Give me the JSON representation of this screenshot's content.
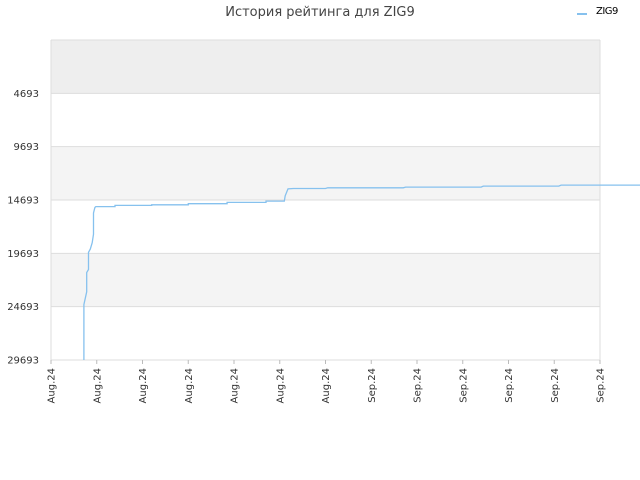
{
  "chart_data": {
    "type": "line",
    "title": "История рейтинга для ZIG9",
    "xlabel": "",
    "ylabel": "",
    "y_axis_inverted": true,
    "ylim": [
      29693,
      -306
    ],
    "yticks": [
      4693,
      9693,
      14693,
      19693,
      24693,
      29693
    ],
    "xticks": [
      "Aug.24",
      "Aug.24",
      "Aug.24",
      "Aug.24",
      "Aug.24",
      "Aug.24",
      "Aug.24",
      "Sep.24",
      "Sep.24",
      "Sep.24",
      "Sep.24",
      "Sep.24",
      "Sep.24"
    ],
    "grid": true,
    "band_colors": [
      "#eeeeee",
      "#ffffff",
      "#f4f4f4",
      "#ffffff",
      "#f4f4f4"
    ],
    "legend_position": "top-right",
    "series": [
      {
        "name": "ZIG9",
        "color": "#86c1ee",
        "points": [
          [
            0.72,
            29693
          ],
          [
            0.72,
            24500
          ],
          [
            0.78,
            23300
          ],
          [
            0.78,
            21500
          ],
          [
            0.82,
            21200
          ],
          [
            0.82,
            19600
          ],
          [
            0.86,
            19300
          ],
          [
            0.9,
            18700
          ],
          [
            0.93,
            17900
          ],
          [
            0.93,
            15900
          ],
          [
            0.96,
            15400
          ],
          [
            0.98,
            15310
          ],
          [
            1.4,
            15310
          ],
          [
            1.4,
            15200
          ],
          [
            2.2,
            15200
          ],
          [
            2.2,
            15140
          ],
          [
            3.0,
            15140
          ],
          [
            3.0,
            15040
          ],
          [
            3.85,
            15040
          ],
          [
            3.85,
            14920
          ],
          [
            4.7,
            14920
          ],
          [
            4.7,
            14800
          ],
          [
            5.1,
            14800
          ],
          [
            5.12,
            14300
          ],
          [
            5.18,
            13650
          ],
          [
            5.3,
            13620
          ],
          [
            6.0,
            13620
          ],
          [
            6.05,
            13550
          ],
          [
            7.7,
            13550
          ],
          [
            7.75,
            13480
          ],
          [
            9.4,
            13480
          ],
          [
            9.45,
            13390
          ],
          [
            11.1,
            13390
          ],
          [
            11.15,
            13300
          ],
          [
            12.95,
            13300
          ],
          [
            12.97,
            12700
          ],
          [
            13.0,
            12600
          ]
        ]
      }
    ]
  }
}
